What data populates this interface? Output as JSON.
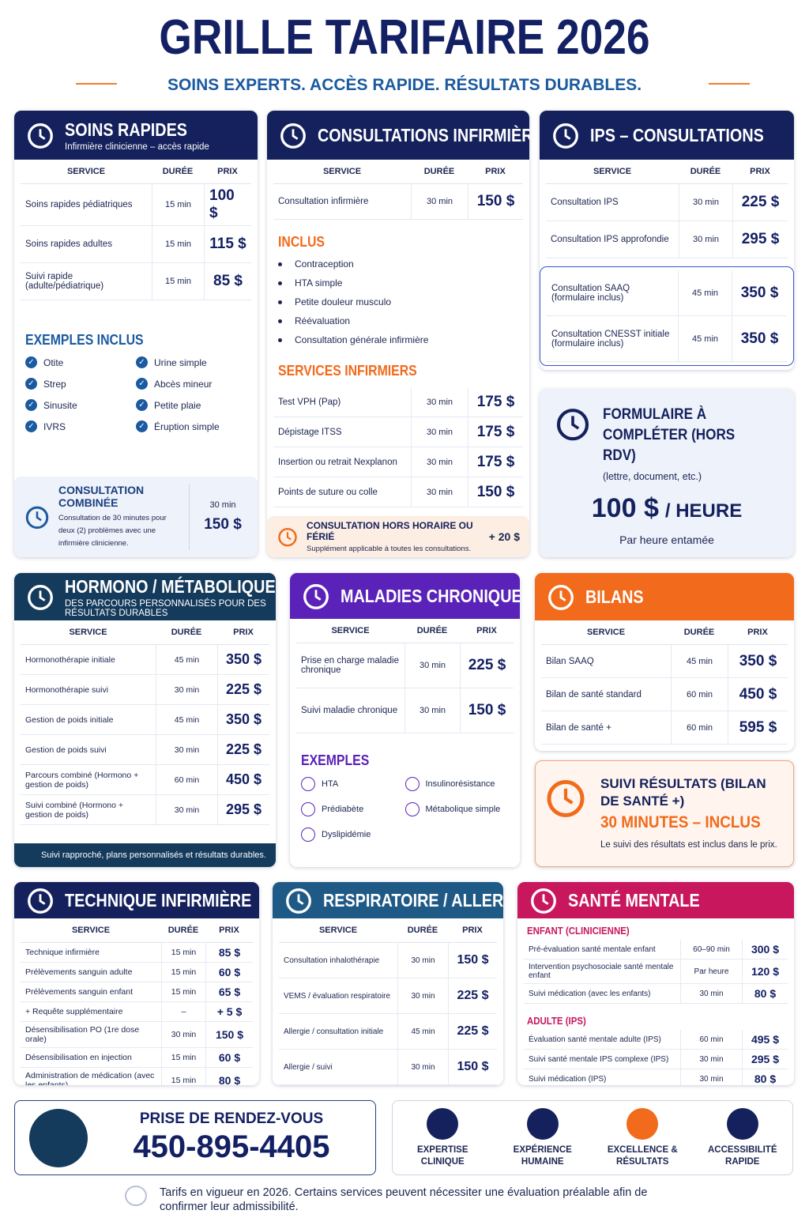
{
  "header": {
    "title": "GRILLE TARIFAIRE 2026",
    "subtitle": "SOINS EXPERTS. ACCÈS RAPIDE. RÉSULTATS DURABLES."
  },
  "soins_rapides": {
    "title": "SOINS RAPIDES",
    "subtitle": "Infirmière clinicienne – accès rapide",
    "columns": [
      "SERVICE",
      "DURÉE",
      "PRIX"
    ],
    "rows": [
      [
        "Soins rapides pédiatriques",
        "15 min",
        "100 $"
      ],
      [
        "Soins rapides adultes",
        "15 min",
        "115 $"
      ],
      [
        "Suivi rapide (adulte/pédiatrique)",
        "15 min",
        "85 $"
      ]
    ],
    "examples_title": "EXEMPLES INCLUS",
    "examples": [
      "Otite",
      "Urine simple",
      "Strep",
      "Abcès mineur",
      "Sinusite",
      "Petite plaie",
      "IVRS",
      "Éruption simple"
    ],
    "combined": {
      "title": "CONSULTATION COMBINÉE",
      "text": "Consultation de 30 minutes pour deux (2) problèmes avec une infirmière clinicienne.",
      "duration": "30 min",
      "price": "150 $"
    }
  },
  "consultations_infirmieres": {
    "title": "CONSULTATIONS INFIRMIÈRES",
    "columns": [
      "SERVICE",
      "DURÉE",
      "PRIX"
    ],
    "rows": [
      [
        "Consultation infirmière",
        "30 min",
        "150 $"
      ]
    ],
    "included_title": "INCLUS",
    "included": [
      "Contraception",
      "HTA simple",
      "Petite douleur musculo",
      "Réévaluation",
      "Consultation générale infirmière"
    ],
    "services_title": "SERVICES INFIRMIERS",
    "services": [
      [
        "Test VPH (Pap)",
        "30 min",
        "175 $"
      ],
      [
        "Dépistage ITSS",
        "30 min",
        "175 $"
      ],
      [
        "Insertion ou retrait Nexplanon",
        "30 min",
        "175 $"
      ],
      [
        "Points de suture ou colle",
        "30 min",
        "150 $"
      ]
    ],
    "note": {
      "title": "CONSULTATION HORS HORAIRE OU FÉRIÉ",
      "text": "Supplément applicable à toutes les consultations.",
      "price": "+ 20 $"
    }
  },
  "ips": {
    "title": "IPS – CONSULTATIONS",
    "columns": [
      "SERVICE",
      "DURÉE",
      "PRIX"
    ],
    "rows": [
      [
        "Consultation IPS",
        "30 min",
        "225 $"
      ],
      [
        "Consultation IPS approfondie",
        "30 min",
        "295 $"
      ]
    ],
    "forms": [
      [
        "Consultation SAAQ (formulaire inclus)",
        "45 min",
        "350 $"
      ],
      [
        "Consultation CNESST initiale (formulaire inclus)",
        "45 min",
        "350 $"
      ]
    ]
  },
  "formulaire": {
    "title": "FORMULAIRE À COMPLÉTER (HORS RDV)",
    "note": "(lettre, document, etc.)",
    "price": "100 $",
    "unit": "/ HEURE",
    "footnote": "Par heure entamée"
  },
  "hormono": {
    "title": "HORMONO / MÉTABOLIQUE",
    "subtitle": "DES PARCOURS PERSONNALISÉS POUR DES RÉSULTATS DURABLES",
    "columns": [
      "SERVICE",
      "DURÉE",
      "PRIX"
    ],
    "rows": [
      [
        "Hormonothérapie initiale",
        "45 min",
        "350 $"
      ],
      [
        "Hormonothérapie suivi",
        "30 min",
        "225 $"
      ],
      [
        "Gestion de poids initiale",
        "45 min",
        "350 $"
      ],
      [
        "Gestion de poids suivi",
        "30 min",
        "225 $"
      ],
      [
        "Parcours combiné (Hormono + gestion de poids)",
        "60 min",
        "450 $"
      ],
      [
        "Suivi combiné (Hormono + gestion de poids)",
        "30 min",
        "295 $"
      ]
    ],
    "footer": "Suivi rapproché, plans personnalisés et résultats durables."
  },
  "chroniques": {
    "title": "MALADIES CHRONIQUES",
    "columns": [
      "SERVICE",
      "DURÉE",
      "PRIX"
    ],
    "rows": [
      [
        "Prise en charge maladie chronique",
        "30 min",
        "225 $"
      ],
      [
        "Suivi maladie chronique",
        "30 min",
        "150 $"
      ]
    ],
    "examples_title": "EXEMPLES",
    "examples": [
      "HTA",
      "Insulinorésistance",
      "Prédiabète",
      "Métabolique simple",
      "Dyslipidémie"
    ]
  },
  "bilans": {
    "title": "BILANS",
    "columns": [
      "SERVICE",
      "DURÉE",
      "PRIX"
    ],
    "rows": [
      [
        "Bilan SAAQ",
        "45 min",
        "350 $"
      ],
      [
        "Bilan de santé standard",
        "60 min",
        "450 $"
      ],
      [
        "Bilan de santé +",
        "60 min",
        "595 $"
      ]
    ]
  },
  "suivi": {
    "title": "SUIVI RÉSULTATS (BILAN DE SANTÉ +)",
    "highlight": "30 MINUTES – INCLUS",
    "text": "Le suivi des résultats est inclus dans le prix."
  },
  "technique": {
    "title": "TECHNIQUE INFIRMIÈRE",
    "columns": [
      "SERVICE",
      "DURÉE",
      "PRIX"
    ],
    "rows": [
      [
        "Technique infirmière",
        "15 min",
        "85 $"
      ],
      [
        "Prélèvements sanguin adulte",
        "15 min",
        "60 $"
      ],
      [
        "Prélèvements sanguin enfant",
        "15 min",
        "65 $"
      ],
      [
        "+ Requête supplémentaire",
        "–",
        "+ 5 $"
      ],
      [
        "Désensibilisation PO (1re dose orale)",
        "30 min",
        "150 $"
      ],
      [
        "Désensibilisation en injection",
        "15 min",
        "60 $"
      ],
      [
        "Administration de médication (avec les enfants)",
        "15 min",
        "80 $"
      ]
    ]
  },
  "respiratoire": {
    "title": "RESPIRATOIRE / ALLERGIES",
    "columns": [
      "SERVICE",
      "DURÉE",
      "PRIX"
    ],
    "rows": [
      [
        "Consultation inhalothérapie",
        "30 min",
        "150 $"
      ],
      [
        "VEMS / évaluation respiratoire",
        "30 min",
        "225 $"
      ],
      [
        "Allergie / consultation initiale",
        "45 min",
        "225 $"
      ],
      [
        "Allergie / suivi",
        "30 min",
        "150 $"
      ]
    ]
  },
  "sante_mentale": {
    "title": "SANTÉ MENTALE",
    "sections": [
      {
        "title": "ENFANT (CLINICIENNE)",
        "rows": [
          [
            "Pré-évaluation santé mentale enfant",
            "60–90 min",
            "300 $"
          ],
          [
            "Intervention psychosociale santé mentale enfant",
            "Par heure",
            "120 $"
          ],
          [
            "Suivi médication (avec les enfants)",
            "30 min",
            "80 $"
          ]
        ]
      },
      {
        "title": "ADULTE (IPS)",
        "rows": [
          [
            "Évaluation santé mentale adulte (IPS)",
            "60 min",
            "495 $"
          ],
          [
            "Suivi santé mentale IPS complexe (IPS)",
            "30 min",
            "295 $"
          ],
          [
            "Suivi médication (IPS)",
            "30 min",
            "80 $"
          ]
        ]
      }
    ]
  },
  "booking": {
    "label": "PRISE DE RENDEZ-VOUS",
    "phone": "450-895-4405"
  },
  "values": [
    "EXPERTISE CLINIQUE",
    "EXPÉRIENCE HUMAINE",
    "EXCELLENCE & RÉSULTATS",
    "ACCESSIBILITÉ RAPIDE"
  ],
  "footer": "Tarifs en vigueur en 2026. Certains services peuvent nécessiter une évaluation préalable afin de confirmer leur admissibilité."
}
